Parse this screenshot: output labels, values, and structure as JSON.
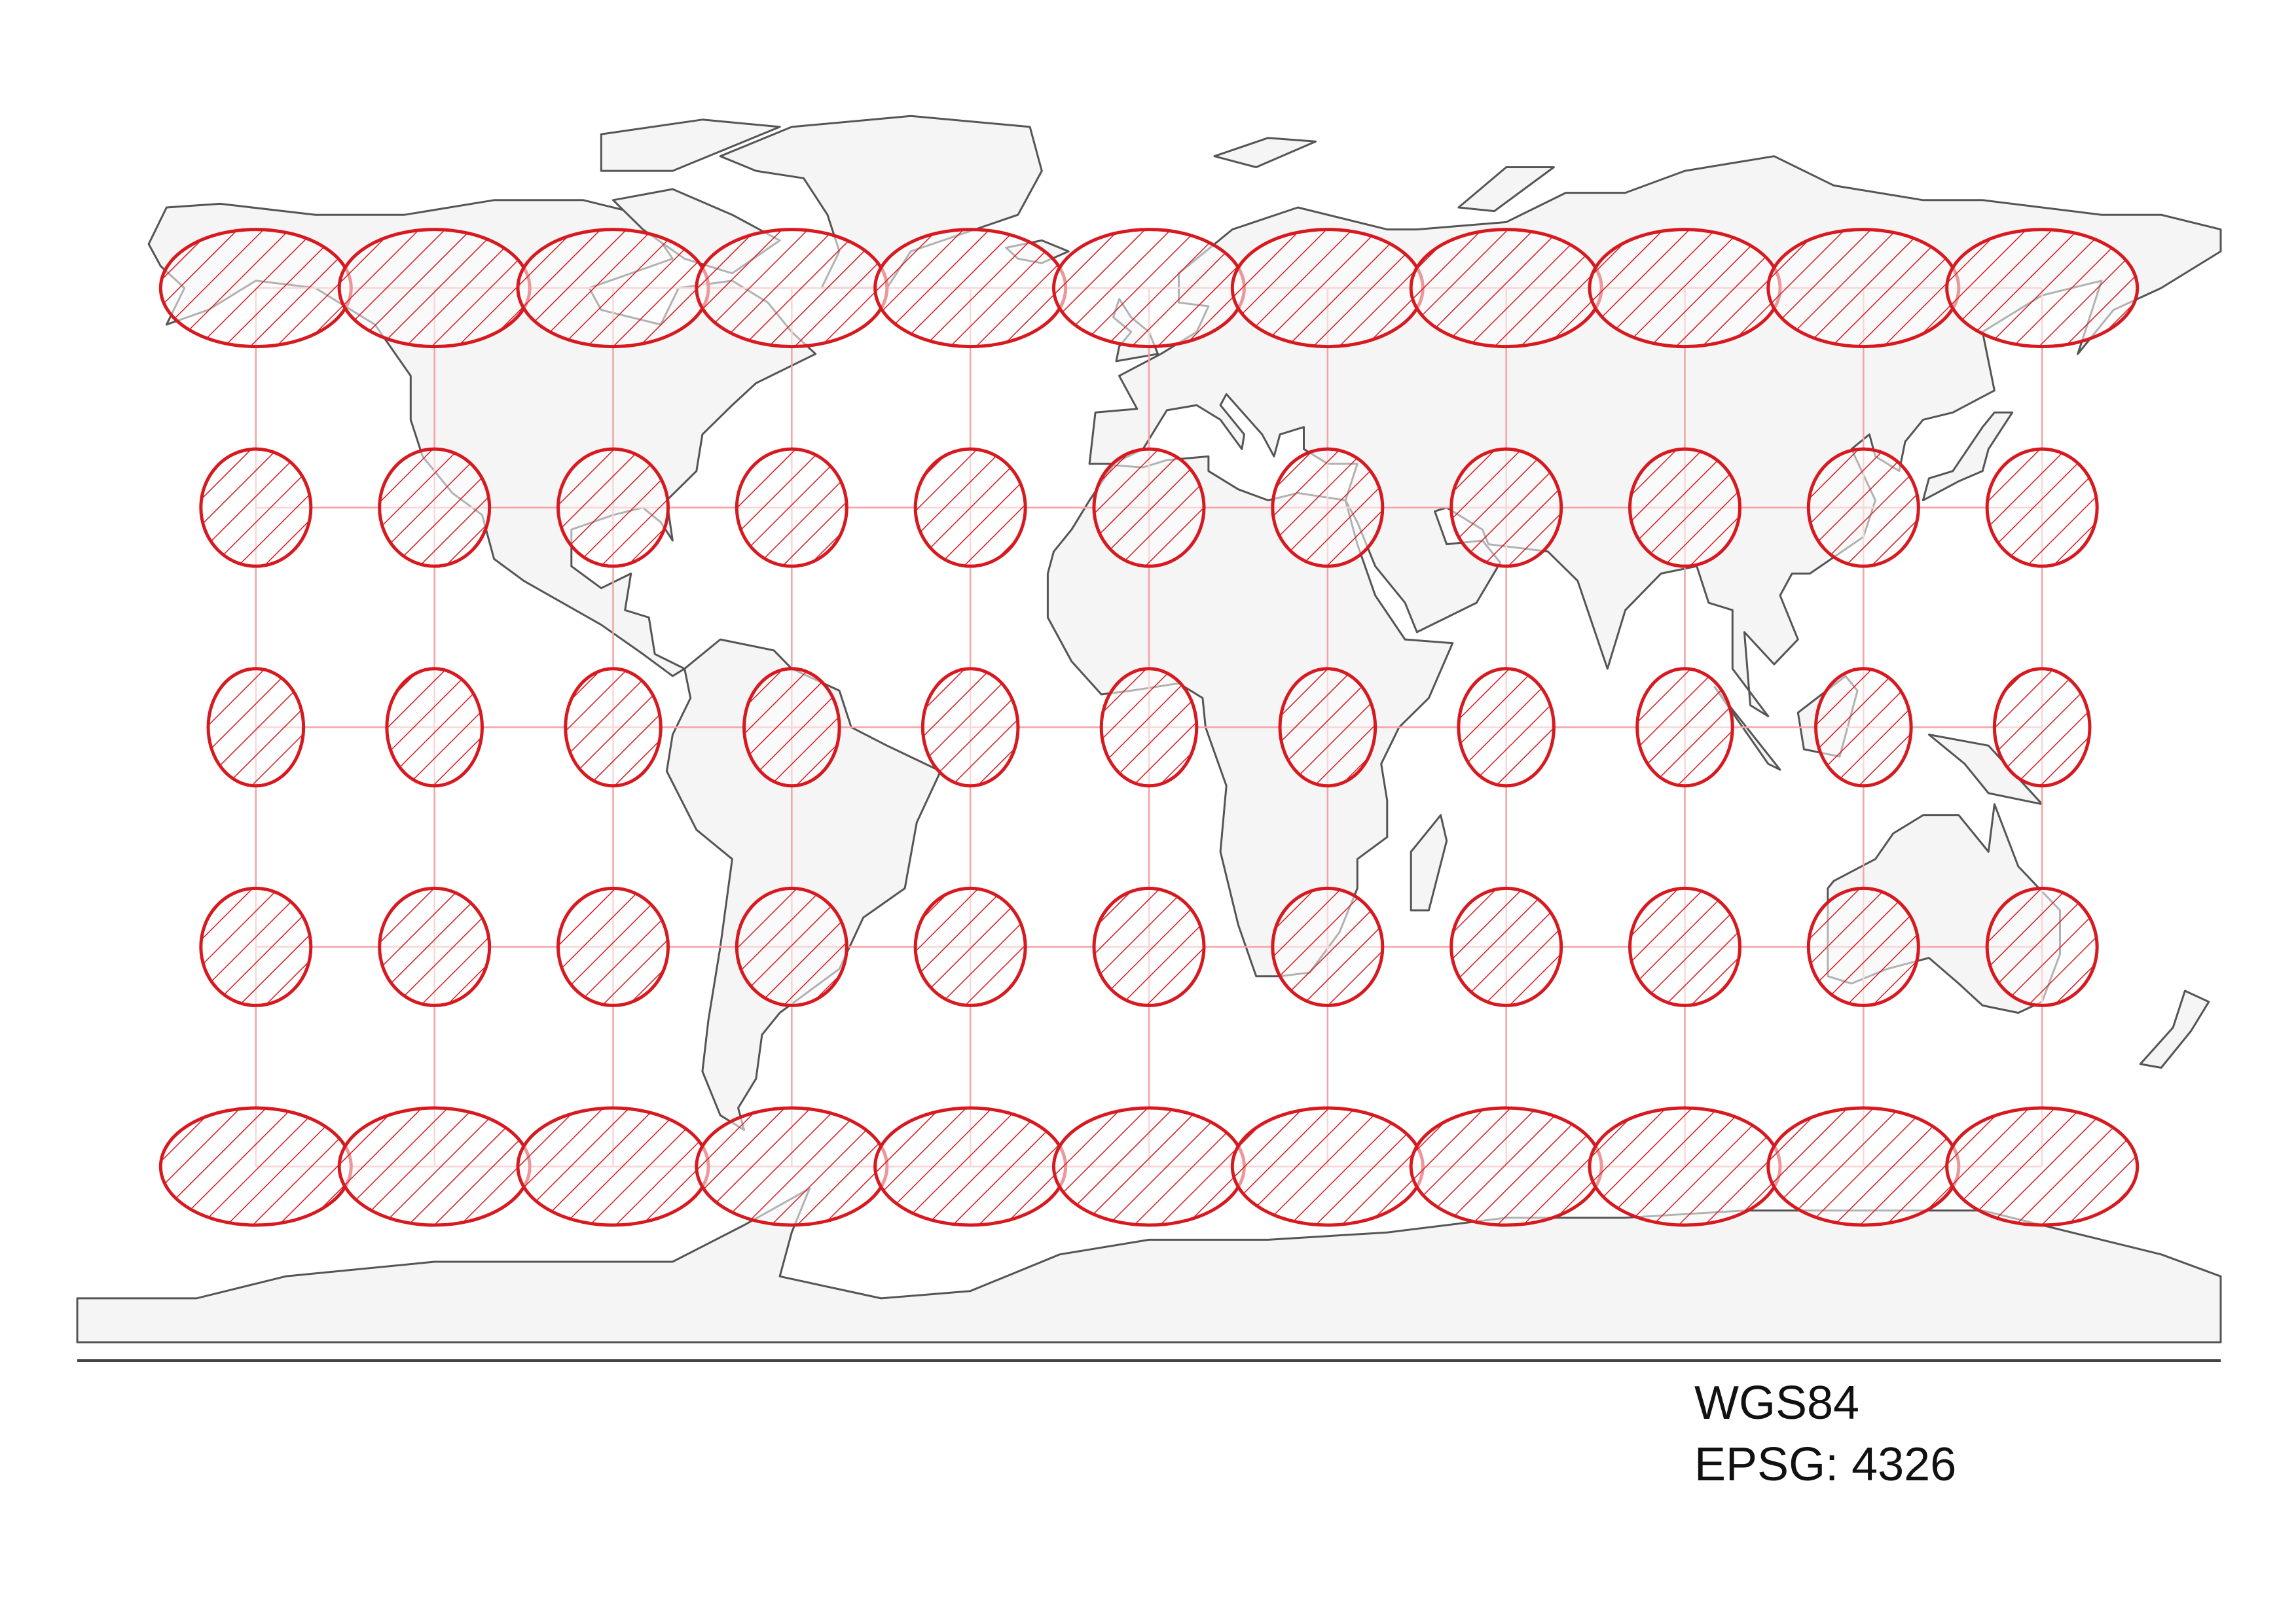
{
  "labels": {
    "datum": "WGS84",
    "epsg": "EPSG: 4326"
  },
  "map": {
    "projection": "equirectangular (plate carrée)",
    "graticule_longitudes": [
      -150,
      -120,
      -90,
      -60,
      -30,
      0,
      30,
      60,
      90,
      120,
      150
    ],
    "graticule_latitudes": [
      60,
      30,
      0,
      -30,
      -60
    ],
    "indicatrix": {
      "radius_deg": 10,
      "shape": "ellipse",
      "fill": "diagonal-hatch"
    },
    "colors": {
      "land": "#f5f5f5",
      "coast": "#555555",
      "indicatrix": "#d71920",
      "graticule": "#f4a3a6",
      "frame": "#444444"
    }
  }
}
